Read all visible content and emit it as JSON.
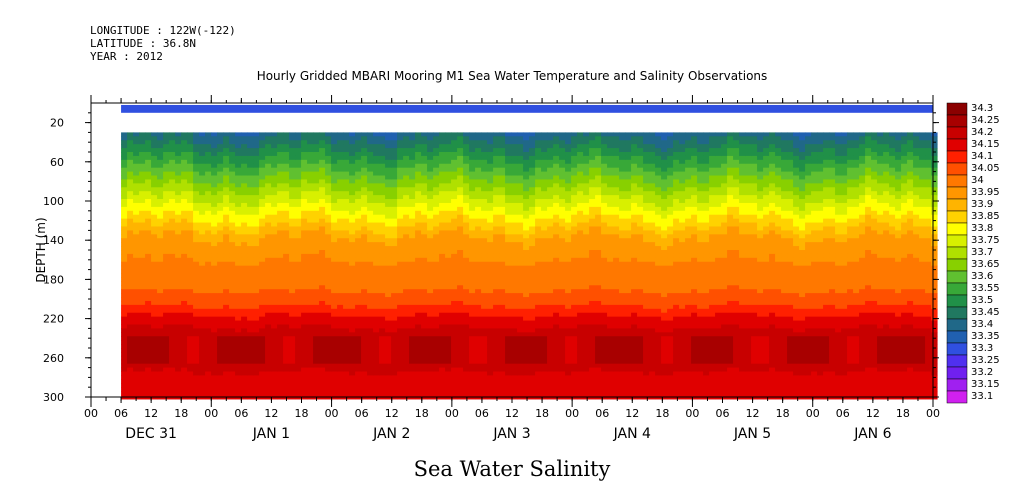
{
  "header": {
    "longitude": "LONGITUDE : 122W(-122)",
    "latitude": "LATITUDE : 36.8N",
    "year": "YEAR : 2012"
  },
  "chart_data": {
    "type": "heatmap",
    "title": "Hourly Gridded MBARI Mooring M1 Sea Water Temperature and Salinity Observations",
    "xlabel": "Sea Water Salinity",
    "ylabel": "DEPTH (m)",
    "y_ticks": [
      "20",
      "60",
      "100",
      "140",
      "180",
      "220",
      "260",
      "300"
    ],
    "ylim": [
      300,
      0
    ],
    "x_hour_ticks": [
      "00",
      "06",
      "12",
      "18",
      "00",
      "06",
      "12",
      "18",
      "00",
      "06",
      "12",
      "18",
      "00",
      "06",
      "12",
      "18",
      "00",
      "06",
      "12",
      "18",
      "00",
      "06",
      "12",
      "18",
      "00",
      "06",
      "12",
      "18",
      "00"
    ],
    "x_day_labels": [
      "DEC 31",
      "JAN  1",
      "JAN  2",
      "JAN  3",
      "JAN  4",
      "JAN  5",
      "JAN  6"
    ],
    "xlim_hours": [
      0,
      168
    ],
    "data_start_hour": 6,
    "colorbar": {
      "levels": [
        "34.3",
        "34.25",
        "34.2",
        "34.15",
        "34.1",
        "34.05",
        "34",
        "33.95",
        "33.9",
        "33.85",
        "33.8",
        "33.75",
        "33.7",
        "33.65",
        "33.6",
        "33.55",
        "33.5",
        "33.45",
        "33.4",
        "33.35",
        "33.3",
        "33.25",
        "33.2",
        "33.15",
        "33.1"
      ],
      "colors": [
        "#8b0000",
        "#a80000",
        "#c80000",
        "#e00000",
        "#ff2000",
        "#ff5000",
        "#ff7800",
        "#ff9600",
        "#ffb400",
        "#ffd200",
        "#ffff00",
        "#d8f000",
        "#b0e000",
        "#88d000",
        "#60c030",
        "#38a838",
        "#209048",
        "#207860",
        "#206888",
        "#2060b0",
        "#3050e0",
        "#5030f0",
        "#7020f0",
        "#a020f0",
        "#d020f0"
      ]
    },
    "depth_profile": [
      {
        "depth": 10,
        "salinity": 33.3
      },
      {
        "depth": 40,
        "salinity": 33.45
      },
      {
        "depth": 60,
        "salinity": 33.55
      },
      {
        "depth": 80,
        "salinity": 33.65
      },
      {
        "depth": 100,
        "salinity": 33.75
      },
      {
        "depth": 120,
        "salinity": 33.85
      },
      {
        "depth": 140,
        "salinity": 33.95
      },
      {
        "depth": 180,
        "salinity": 34.0
      },
      {
        "depth": 200,
        "salinity": 34.05
      },
      {
        "depth": 220,
        "salinity": 34.15
      },
      {
        "depth": 250,
        "salinity": 34.25
      },
      {
        "depth": 280,
        "salinity": 34.15
      },
      {
        "depth": 300,
        "salinity": 34.15
      }
    ],
    "grid": false,
    "legend": "right"
  }
}
